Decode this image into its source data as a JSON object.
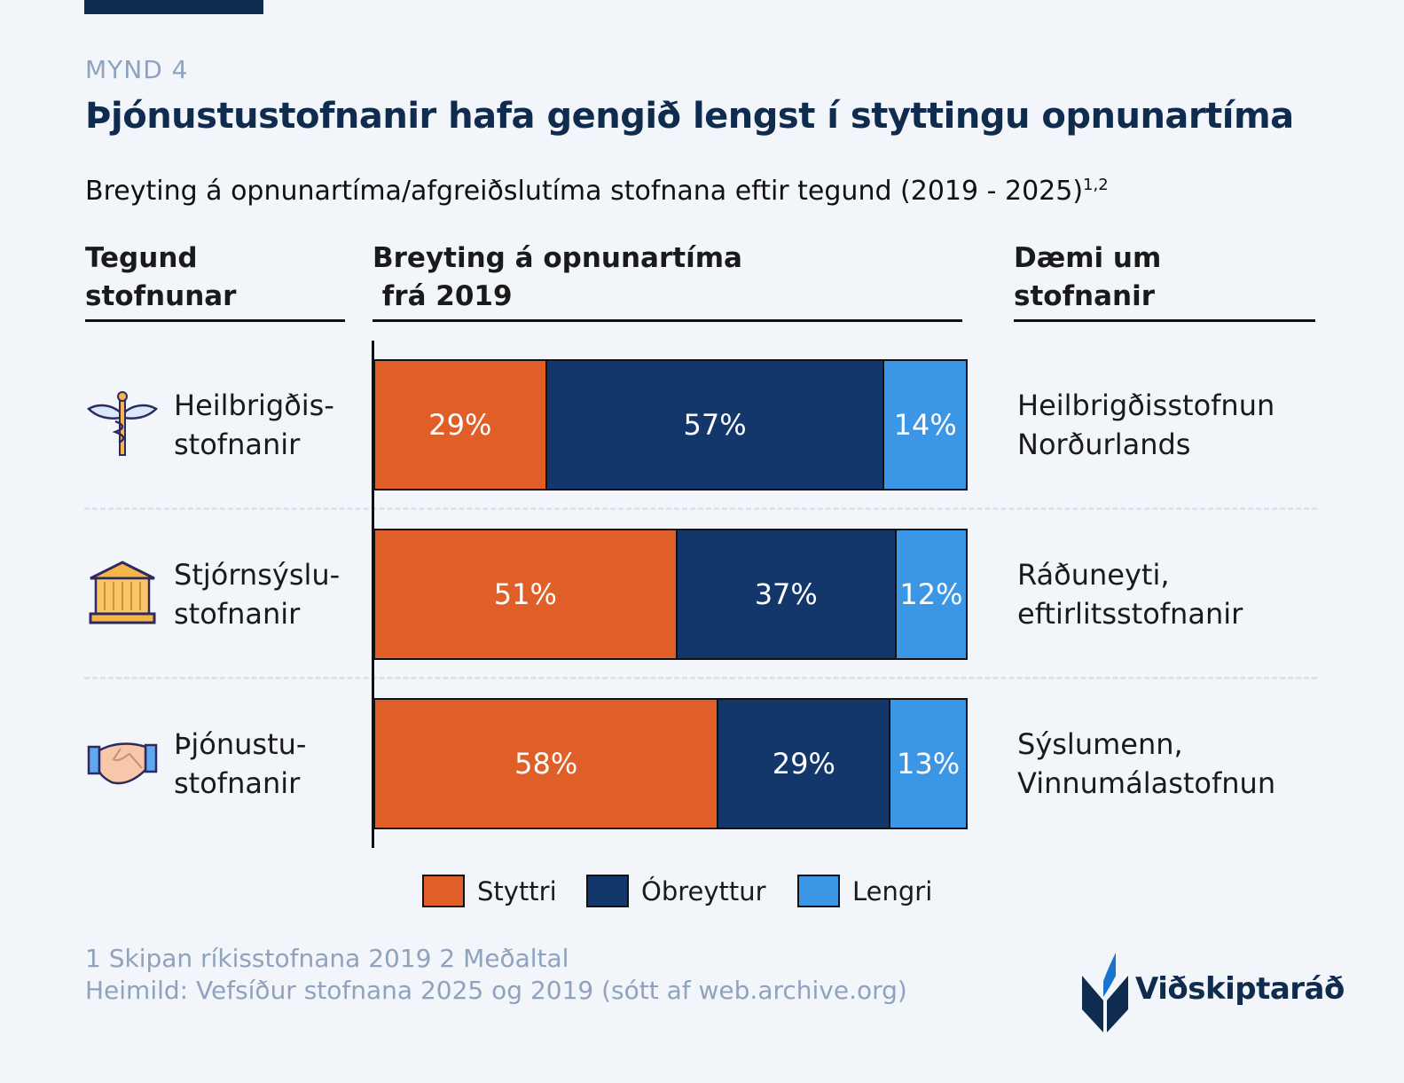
{
  "header": {
    "figure_label": "MYND 4",
    "title": "Þjónustustofnanir hafa gengið lengst í styttingu opnunartíma",
    "subtitle": "Breyting á opnunartíma/afgreiðslutíma stofnana eftir tegund (2019 - 2025)",
    "subtitle_sup": "1,2"
  },
  "columns": {
    "type": "Tegund\nstofnunar",
    "change": "Breyting á opnunartíma\n frá 2019",
    "examples": "Dæmi um\nstofnanir"
  },
  "colors": {
    "Styttri": "#E05E27",
    "Óbreyttur": "#13366B",
    "Lengri": "#3B97E6",
    "background": "#F2F5FA",
    "title": "#0F2B4D"
  },
  "chart_data": {
    "type": "bar",
    "orientation": "horizontal",
    "stacked": true,
    "unit": "%",
    "xlim": [
      0,
      100
    ],
    "categories": [
      "Heilbrigðis-\nstofnanir",
      "Stjórnsýslu-\nstofnanir",
      "Þjónustu-\nstofnanir"
    ],
    "category_icons": [
      "caduceus-icon",
      "government-building-icon",
      "handshake-icon"
    ],
    "examples": [
      "Heilbrigðisstofnun\nNorðurlands",
      "Ráðuneyti,\neftirlitsstofnanir",
      "Sýslumenn,\nVinnumálastofnun"
    ],
    "series": [
      {
        "name": "Styttri",
        "values": [
          29,
          51,
          58
        ],
        "labels": [
          "29%",
          "51%",
          "58%"
        ]
      },
      {
        "name": "Óbreyttur",
        "values": [
          57,
          37,
          29
        ],
        "labels": [
          "57%",
          "37%",
          "29%"
        ]
      },
      {
        "name": "Lengri",
        "values": [
          14,
          12,
          13
        ],
        "labels": [
          "14%",
          "12%",
          "13%"
        ]
      }
    ],
    "legend_position": "bottom",
    "grid": false
  },
  "footer": {
    "notes": "1 Skipan ríkisstofnana 2019 2 Meðaltal",
    "source": "Heimild: Vefsíður stofnana 2025 og 2019 (sótt af web.archive.org)",
    "logo": "Viðskiptaráð"
  }
}
